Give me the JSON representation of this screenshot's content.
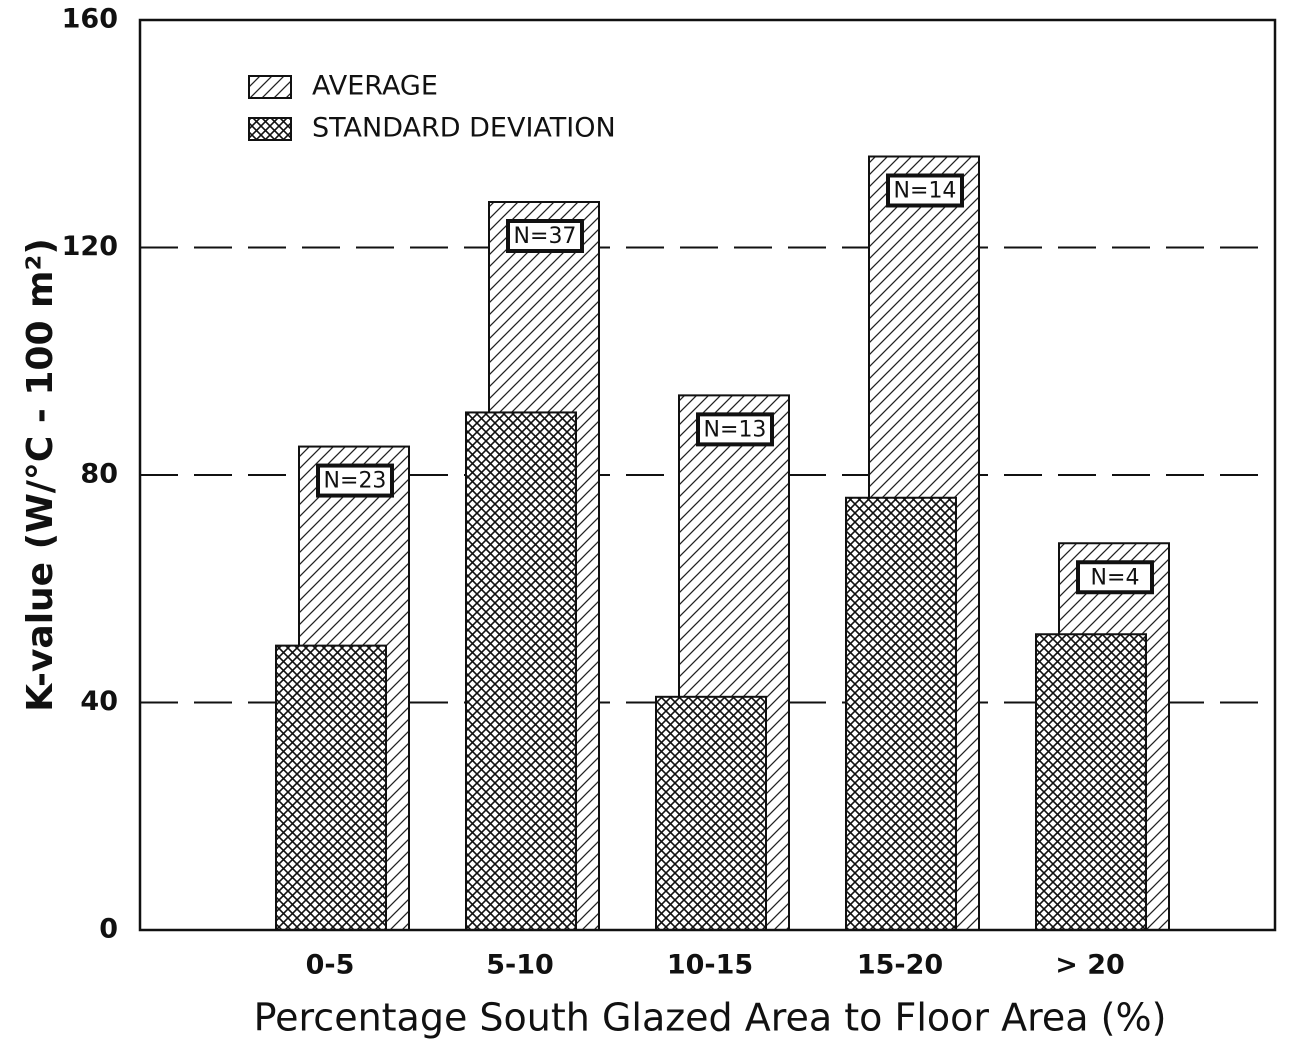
{
  "chart_data": {
    "type": "bar",
    "x_label": "Percentage South Glazed Area to Floor Area (%)",
    "y_label": "K-value (W/°C - 100 m²)",
    "categories": [
      "0-5",
      "5-10",
      "10-15",
      "15-20",
      "> 20"
    ],
    "series": [
      {
        "name": "AVERAGE",
        "pattern": "hatch",
        "values": [
          85,
          128,
          94,
          136,
          68
        ]
      },
      {
        "name": "STANDARD DEVIATION",
        "pattern": "crosshatch",
        "values": [
          50,
          91,
          41,
          76,
          52
        ]
      }
    ],
    "annotations": [
      "N=23",
      "N=37",
      "N=13",
      "N=14",
      "N=4"
    ],
    "ylim": [
      0,
      160
    ],
    "yticks": [
      0,
      40,
      80,
      120,
      160
    ],
    "grid": true,
    "legend": "upper left"
  }
}
